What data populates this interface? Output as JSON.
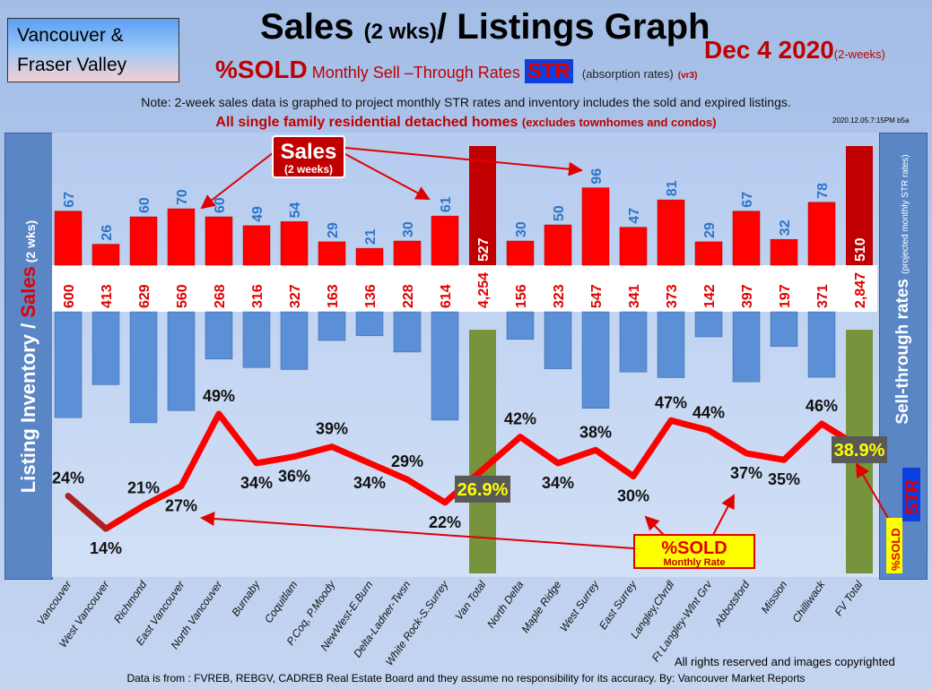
{
  "brand": {
    "line1": "Vancouver &",
    "line2": "Fraser Valley"
  },
  "header": {
    "title_a": "Sales",
    "title_b": "(2 wks)",
    "title_c": "/ Listings Graph",
    "date": "Dec 4  2020",
    "date_note": "(2-weeks)",
    "sub_sold": "%SOLD",
    "sub_rate": "Monthly Sell –Through Rates",
    "sub_str": "STR",
    "sub_abs": "(absorption rates)",
    "sub_ver": "(vr3)",
    "note": "Note: 2-week sales data is graphed to project monthly STR rates and inventory includes the sold and expired listings.",
    "scope": "All single family residential detached homes",
    "scope_note": "(excludes townhomes and condos)",
    "stamp": "2020.12.05.7:15PM b5a"
  },
  "left_panel": {
    "label_a": "Listing Inventory / ",
    "label_b": "Sales",
    "label_c": " (2  wks)"
  },
  "right_panel": {
    "label_a": "Sell-through rates",
    "label_b": "(projected monthly STR rates)"
  },
  "callouts": {
    "sales": "Sales",
    "sales_sub": "(2 weeks)",
    "sold": "%SOLD",
    "sold_sub": "Monthly Rate",
    "badge_sold": "%SOLD",
    "badge_str": "STR"
  },
  "footer": {
    "rights": "All rights reserved and  images copyrighted",
    "source": "Data is from : FVREB, REBGV, CADREB Real Estate Board and they assume no responsibility for its accuracy. By: Vancouver Market Reports"
  },
  "colors": {
    "sales": "#ff0000",
    "inventory": "#5b8fd6",
    "total_sales": "#c00000",
    "total_inv": "#77933c",
    "line": "#ff0000"
  },
  "chart_data": {
    "type": "bar",
    "title": "Sales (2 wks)/ Listings Graph",
    "categories": [
      "Vancouver",
      "West Vancouver",
      "Richmond",
      "East Vancouver",
      "North Vancouver",
      "Burnaby",
      "Coquitlam",
      "P.Coq, P.Moody",
      "NewWest-E.Burn",
      "Delta-Ladner-Twsn",
      "White Rock-S.Surrey",
      "Van Total",
      "North Delta",
      "Maple Ridge",
      "West Surrey",
      "East Surrey",
      "Langley,Clvrdl",
      "Ft Langley-Wlnt Grv",
      "Abbotsford",
      "Mission",
      "Chilliwack",
      "FV Total"
    ],
    "is_total": [
      false,
      false,
      false,
      false,
      false,
      false,
      false,
      false,
      false,
      false,
      false,
      true,
      false,
      false,
      false,
      false,
      false,
      false,
      false,
      false,
      false,
      true
    ],
    "series": [
      {
        "name": "Sales (2 weeks)",
        "values": [
          67,
          26,
          60,
          70,
          60,
          49,
          54,
          29,
          21,
          30,
          61,
          527,
          30,
          50,
          96,
          47,
          81,
          29,
          67,
          32,
          78,
          510
        ]
      },
      {
        "name": "Listing Inventory",
        "values": [
          600,
          413,
          629,
          560,
          268,
          316,
          327,
          163,
          136,
          228,
          614,
          4254,
          156,
          323,
          547,
          341,
          373,
          142,
          397,
          197,
          371,
          2847
        ]
      },
      {
        "name": "%SOLD Monthly STR",
        "values": [
          24,
          14,
          21,
          27,
          49,
          34,
          36,
          39,
          34,
          29,
          22,
          26.9,
          42,
          34,
          38,
          30,
          47,
          44,
          37,
          35,
          46,
          38.9
        ]
      }
    ],
    "labels": {
      "inventory": [
        "600",
        "413",
        "629",
        "560",
        "268",
        "316",
        "327",
        "163",
        "136",
        "228",
        "614",
        "4,254",
        "156",
        "323",
        "547",
        "341",
        "373",
        "142",
        "397",
        "197",
        "371",
        "2,847"
      ],
      "str": [
        "24%",
        "14%",
        "21%",
        "27%",
        "49%",
        "34%",
        "36%",
        "39%",
        "34%",
        "29%",
        "22%",
        "26.9%",
        "42%",
        "34%",
        "38%",
        "30%",
        "47%",
        "44%",
        "37%",
        "35%",
        "46%",
        "38.9%"
      ]
    }
  }
}
